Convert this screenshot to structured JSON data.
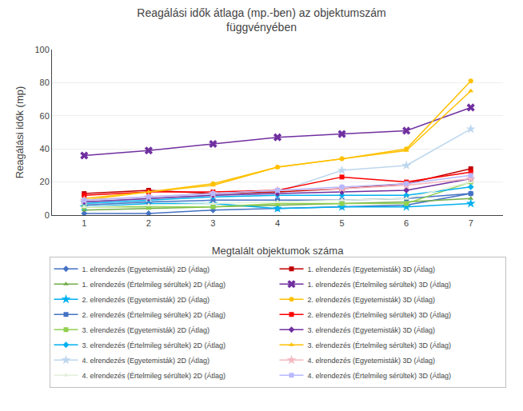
{
  "chart_data": {
    "type": "line",
    "title": "Reagálási idők átlaga (mp.-ben) az objektumszám\nfüggvényében",
    "x_label": "Megtalált objektumok száma",
    "y_label": "Reagálási idők (mp)",
    "x": [
      1,
      2,
      3,
      4,
      5,
      6,
      7
    ],
    "xlim": [
      0.5,
      7.5
    ],
    "xticks": [
      1,
      2,
      3,
      4,
      5,
      6,
      7
    ],
    "ylim": [
      0,
      100
    ],
    "yticks": [
      0,
      20,
      40,
      60,
      80,
      100
    ],
    "grid": "y",
    "legend": "bottom",
    "series": [
      {
        "name": "1. elrendezés (Egyetemisták) 2D (Átlag)",
        "values": [
          1,
          1,
          3,
          4,
          5,
          6,
          13
        ],
        "color": "#4472C4",
        "marker": "diamond"
      },
      {
        "name": "1. elrendezés (Értelmileg sérültek) 2D (Átlag)",
        "values": [
          3,
          4,
          5,
          6,
          7,
          8,
          10
        ],
        "color": "#70AD47",
        "marker": "triangle-up"
      },
      {
        "name": "2. elrendezés (Egyetemisták) 2D (Átlag)",
        "values": [
          5,
          7,
          7,
          4,
          5,
          5,
          7
        ],
        "color": "#00B0F0",
        "marker": "star"
      },
      {
        "name": "2. elrendezés (Értelmileg sérültek) 2D (Átlag)",
        "values": [
          6,
          8,
          9,
          9,
          9,
          10,
          13
        ],
        "color": "#4472C4",
        "marker": "square"
      },
      {
        "name": "3. elrendezés (Egyetemisták) 2D (Átlag)",
        "values": [
          5,
          5,
          5,
          7,
          7,
          7,
          20
        ],
        "color": "#92D050",
        "marker": "square"
      },
      {
        "name": "3. elrendezés (Értelmileg sérültek) 2D (Átlag)",
        "values": [
          7,
          9,
          11,
          12,
          12,
          12,
          17
        ],
        "color": "#00B0F0",
        "marker": "diamond"
      },
      {
        "name": "4. elrendezés (Egyetemisták) 2D (Átlag)",
        "values": [
          8,
          10,
          12,
          14,
          27,
          30,
          52
        ],
        "color": "#BDD7EE",
        "marker": "star"
      },
      {
        "name": "4. elrendezés (Értelmileg sérültek) 2D (Átlag)",
        "values": [
          5,
          6,
          7,
          8,
          9,
          10,
          20
        ],
        "color": "#E2EFDA",
        "marker": "triangle-up"
      },
      {
        "name": "1. elrendezés (Egyetemisták) 3D (Átlag)",
        "values": [
          13,
          15,
          13,
          14,
          16,
          19,
          28
        ],
        "color": "#C00000",
        "marker": "square"
      },
      {
        "name": "1. elrendezés (Értelmileg sérültek) 3D (Átlag)",
        "values": [
          36,
          39,
          43,
          47,
          49,
          51,
          65
        ],
        "color": "#7030A0",
        "marker": "x"
      },
      {
        "name": "2. elrendezés (Egyetemisták) 3D (Átlag)",
        "values": [
          9,
          14,
          19,
          29,
          34,
          40,
          81
        ],
        "color": "#FFC000",
        "marker": "circle"
      },
      {
        "name": "2. elrendezés (Értelmileg sérültek) 3D (Átlag)",
        "values": [
          12,
          14,
          14,
          15,
          23,
          20,
          26
        ],
        "color": "#FF0000",
        "marker": "square"
      },
      {
        "name": "3. elrendezés (Egyetemisták) 3D (Átlag)",
        "values": [
          8,
          10,
          12,
          13,
          14,
          15,
          22
        ],
        "color": "#7030A0",
        "marker": "diamond"
      },
      {
        "name": "3. elrendezés (Értelmileg sérültek) 3D (Átlag)",
        "values": [
          10,
          14,
          18,
          29,
          34,
          39,
          75
        ],
        "color": "#FFC000",
        "marker": "triangle-up"
      },
      {
        "name": "4. elrendezés (Egyetemisták) 3D (Átlag)",
        "values": [
          9,
          11,
          13,
          15,
          16,
          18,
          22
        ],
        "color": "#F4B8C1",
        "marker": "star"
      },
      {
        "name": "4. elrendezés (Értelmileg sérültek) 3D (Átlag)",
        "values": [
          9,
          11,
          13,
          15,
          17,
          19,
          24
        ],
        "color": "#B8B8FF",
        "marker": "square"
      }
    ]
  }
}
